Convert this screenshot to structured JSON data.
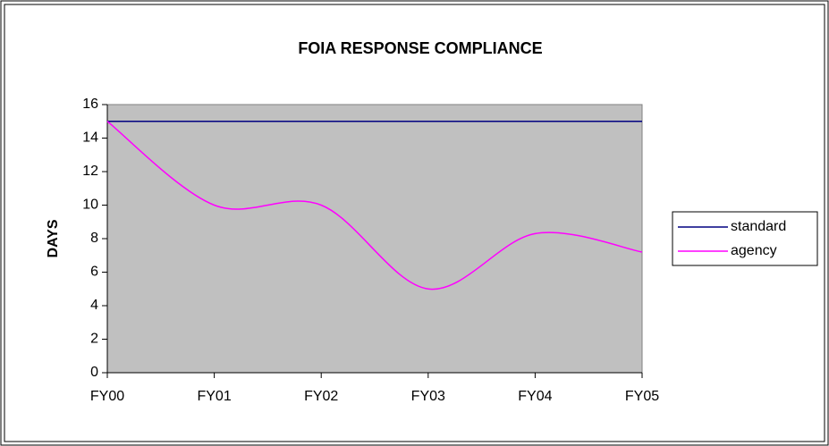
{
  "chart_data": {
    "type": "line",
    "title": "FOIA RESPONSE COMPLIANCE",
    "y_label": "DAYS",
    "categories": [
      "FY00",
      "FY01",
      "FY02",
      "FY03",
      "FY04",
      "FY05"
    ],
    "series": [
      {
        "name": "standard",
        "color": "#000080",
        "values": [
          15,
          15,
          15,
          15,
          15,
          15
        ]
      },
      {
        "name": "agency",
        "color": "#ff00ff",
        "values": [
          15,
          10,
          10,
          5,
          8.3,
          7.2
        ]
      }
    ],
    "ylim": [
      0,
      16
    ],
    "yticks": [
      0,
      2,
      4,
      6,
      8,
      10,
      12,
      14,
      16
    ],
    "smooth": true,
    "legend": "right",
    "plot_background": "#c0c0c0"
  }
}
